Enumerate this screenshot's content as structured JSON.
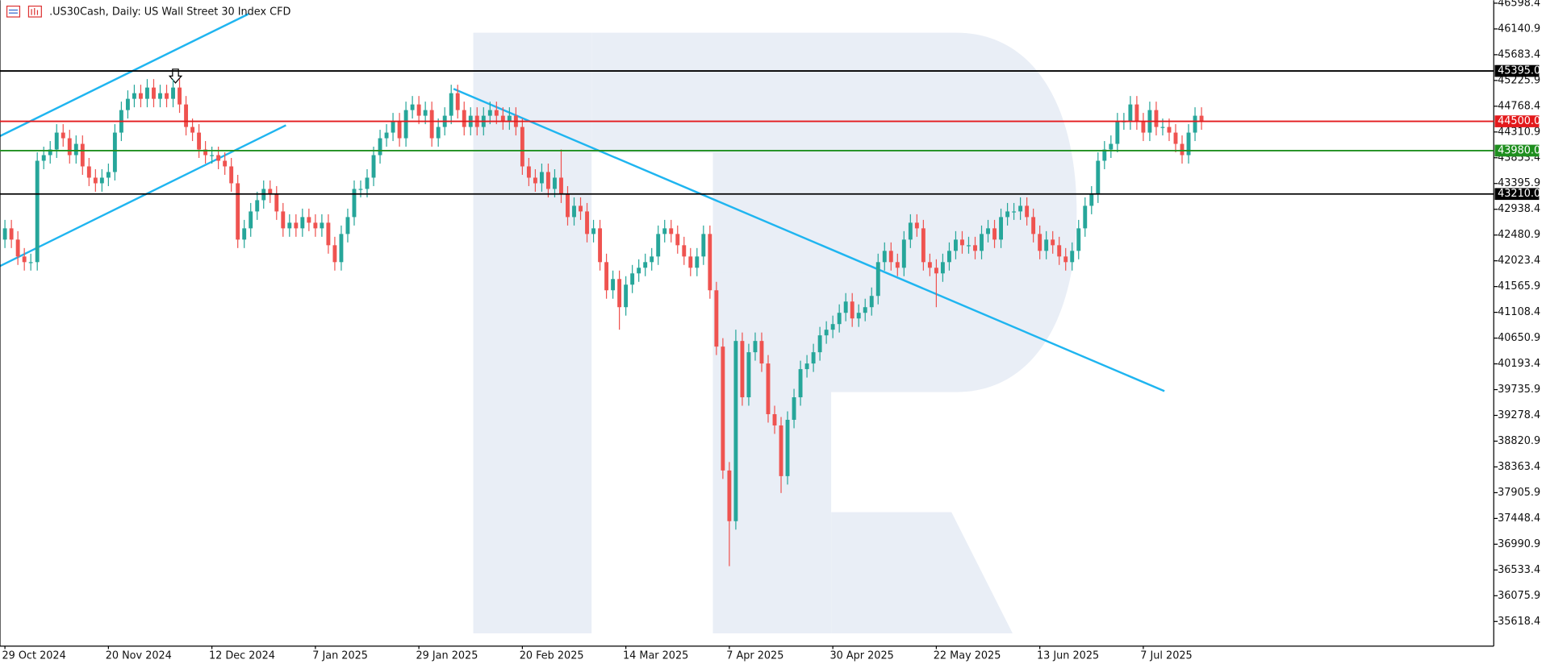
{
  "chart_data": {
    "type": "candlestick",
    "title": ".US30Cash, Daily:  US Wall Street 30 Index CFD",
    "up_color": "#26a69a",
    "down_color": "#ef5350",
    "ylim": [
      35181,
      46651
    ],
    "yticks": [
      46598.4,
      46140.9,
      45683.4,
      45225.9,
      44768.4,
      44310.9,
      43853.4,
      43395.9,
      42938.4,
      42480.9,
      42023.4,
      41565.9,
      41108.4,
      40650.9,
      40193.4,
      39735.9,
      39278.4,
      38820.9,
      38363.4,
      37905.9,
      37448.4,
      36990.9,
      36533.4,
      36075.9,
      35618.4
    ],
    "grid": false,
    "levels": [
      {
        "value": 45395,
        "label": "45395.0",
        "color": "#000000"
      },
      {
        "value": 44500,
        "label": "44500.0",
        "color": "#e31a1c"
      },
      {
        "value": 43980,
        "label": "43980.0",
        "color": "#1f8f1f"
      },
      {
        "value": 43210,
        "label": "43210.0",
        "color": "#000000"
      }
    ],
    "categories": [
      "29 Oct 2024",
      null,
      null,
      null,
      null,
      null,
      null,
      null,
      null,
      null,
      null,
      null,
      null,
      null,
      null,
      null,
      "20 Nov 2024",
      null,
      null,
      null,
      null,
      null,
      null,
      null,
      null,
      null,
      null,
      null,
      null,
      null,
      null,
      null,
      "12 Dec 2024",
      null,
      null,
      null,
      null,
      null,
      null,
      null,
      null,
      null,
      null,
      null,
      null,
      null,
      null,
      null,
      "7 Jan 2025",
      null,
      null,
      null,
      null,
      null,
      null,
      null,
      null,
      null,
      null,
      null,
      null,
      null,
      null,
      null,
      "29 Jan 2025",
      null,
      null,
      null,
      null,
      null,
      null,
      null,
      null,
      null,
      null,
      null,
      null,
      null,
      null,
      null,
      "20 Feb 2025",
      null,
      null,
      null,
      null,
      null,
      null,
      null,
      null,
      null,
      null,
      null,
      null,
      null,
      null,
      null,
      "14 Mar 2025",
      null,
      null,
      null,
      null,
      null,
      null,
      null,
      null,
      null,
      null,
      null,
      null,
      null,
      null,
      null,
      "7 Apr 2025",
      null,
      null,
      null,
      null,
      null,
      null,
      null,
      null,
      null,
      null,
      null,
      null,
      null,
      null,
      null,
      "30 Apr 2025",
      null,
      null,
      null,
      null,
      null,
      null,
      null,
      null,
      null,
      null,
      null,
      null,
      null,
      null,
      null,
      "22 May 2025",
      null,
      null,
      null,
      null,
      null,
      null,
      null,
      null,
      null,
      null,
      null,
      null,
      null,
      null,
      null,
      "13 Jun 2025",
      null,
      null,
      null,
      null,
      null,
      null,
      null,
      null,
      null,
      null,
      null,
      null,
      null,
      null,
      null,
      "7 Jul 2025",
      null,
      null,
      null,
      null,
      null,
      null,
      null,
      null,
      null
    ],
    "open": [
      42400,
      42600,
      42400,
      42100,
      42000,
      42000,
      43800,
      43900,
      44000,
      44300,
      44200,
      43900,
      44100,
      43700,
      43500,
      43400,
      43500,
      43600,
      44300,
      44700,
      44900,
      45000,
      44900,
      45100,
      44900,
      45000,
      44900,
      45100,
      44800,
      44400,
      44300,
      44000,
      43900,
      43900,
      43800,
      43700,
      43400,
      42400,
      42600,
      42900,
      43100,
      43300,
      43200,
      42900,
      42600,
      42700,
      42600,
      42800,
      42700,
      42600,
      42700,
      42300,
      42000,
      42500,
      42800,
      43300,
      43300,
      43500,
      43900,
      44200,
      44300,
      44500,
      44200,
      44700,
      44800,
      44600,
      44700,
      44200,
      44400,
      44600,
      45000,
      44700,
      44400,
      44600,
      44400,
      44600,
      44700,
      44600,
      44500,
      44600,
      44400,
      43700,
      43500,
      43400,
      43600,
      43300,
      43500,
      43200,
      42800,
      43000,
      42900,
      42500,
      42600,
      42000,
      41500,
      41700,
      41200,
      41600,
      41800,
      41900,
      42000,
      42100,
      42500,
      42600,
      42500,
      42300,
      42100,
      41900,
      42100,
      42500,
      41500,
      40500,
      38300,
      37400,
      40600,
      39600,
      40400,
      40600,
      40200,
      39300,
      39100,
      38200,
      39200,
      39600,
      40100,
      40200,
      40400,
      40700,
      40800,
      40900,
      41100,
      41300,
      41000,
      41100,
      41200,
      41400,
      42000,
      42200,
      42000,
      41900,
      42400,
      42700,
      42600,
      42000,
      41900,
      41800,
      42000,
      42200,
      42400,
      42300,
      42300,
      42200,
      42500,
      42600,
      42400,
      42800,
      42900,
      42900,
      43000,
      42800,
      42500,
      42200,
      42400,
      42300,
      42100,
      42000,
      42200,
      42600,
      43000,
      43200,
      43800,
      44000,
      44100,
      44500,
      44500,
      44800,
      44500,
      44300,
      44700,
      44400,
      44400,
      44300,
      44100,
      43900,
      44300,
      44600
    ],
    "high": [
      42750,
      42750,
      42550,
      42250,
      42150,
      43950,
      44050,
      44150,
      44450,
      44450,
      44350,
      44250,
      44250,
      43850,
      43650,
      43650,
      43750,
      44450,
      44850,
      45050,
      45150,
      45150,
      45250,
      45250,
      45150,
      45150,
      45250,
      45250,
      44950,
      44550,
      44450,
      44150,
      44050,
      44050,
      43950,
      43850,
      43550,
      42750,
      43050,
      43250,
      43450,
      43450,
      43350,
      43050,
      42850,
      42850,
      42950,
      42950,
      42850,
      42850,
      42850,
      42450,
      42650,
      42950,
      43450,
      43450,
      43650,
      44050,
      44350,
      44450,
      44650,
      44650,
      44850,
      44950,
      44950,
      44850,
      44850,
      44550,
      44750,
      45150,
      45150,
      44850,
      44750,
      44750,
      44750,
      44850,
      44850,
      44750,
      44750,
      44750,
      44550,
      43850,
      43650,
      43750,
      43750,
      43650,
      44000,
      43350,
      43150,
      43150,
      43050,
      42750,
      42750,
      42150,
      41850,
      41850,
      41750,
      41950,
      42050,
      42150,
      42250,
      42650,
      42750,
      42750,
      42650,
      42450,
      42250,
      42250,
      42650,
      42650,
      41650,
      40650,
      38450,
      40800,
      40750,
      40550,
      40750,
      40750,
      40350,
      39450,
      39250,
      39350,
      39750,
      40250,
      40350,
      40550,
      40850,
      40950,
      41050,
      41250,
      41450,
      41450,
      41250,
      41350,
      41550,
      42150,
      42350,
      42350,
      42150,
      42550,
      42850,
      42850,
      42750,
      42150,
      42050,
      42150,
      42350,
      42550,
      42550,
      42450,
      42450,
      42650,
      42750,
      42750,
      42950,
      43050,
      43050,
      43150,
      43150,
      42950,
      42650,
      42550,
      42550,
      42450,
      42250,
      42350,
      42750,
      43150,
      43350,
      43950,
      44150,
      44250,
      44650,
      44650,
      44950,
      44950,
      44650,
      44850,
      44850,
      44550,
      44550,
      44450,
      44250,
      44450,
      44750,
      44750
    ],
    "low": [
      42250,
      42250,
      41950,
      41850,
      41850,
      41850,
      43650,
      43750,
      43850,
      44050,
      43750,
      43750,
      43550,
      43350,
      43250,
      43250,
      43350,
      43450,
      44150,
      44550,
      44750,
      44750,
      44750,
      44750,
      44750,
      44750,
      44750,
      44650,
      44250,
      44150,
      43850,
      43750,
      43750,
      43650,
      43550,
      43250,
      42250,
      42250,
      42450,
      42750,
      42950,
      43050,
      42750,
      42450,
      42450,
      42450,
      42450,
      42550,
      42450,
      42450,
      42150,
      41850,
      41850,
      42350,
      42650,
      43150,
      43150,
      43350,
      43750,
      44050,
      44150,
      44050,
      44050,
      44550,
      44450,
      44450,
      44050,
      44050,
      44250,
      44450,
      44550,
      44250,
      44250,
      44250,
      44250,
      44450,
      44450,
      44350,
      44350,
      44250,
      43550,
      43350,
      43250,
      43250,
      43150,
      43150,
      43050,
      42650,
      42650,
      42750,
      42350,
      42350,
      41850,
      41350,
      41350,
      40800,
      41050,
      41450,
      41650,
      41750,
      41850,
      41950,
      42350,
      42350,
      42150,
      41950,
      41750,
      41750,
      41950,
      41350,
      40350,
      38150,
      36600,
      37250,
      39450,
      39450,
      40250,
      40050,
      39150,
      38950,
      37900,
      38050,
      39050,
      39450,
      39950,
      40050,
      40250,
      40550,
      40650,
      40750,
      40950,
      40850,
      40850,
      40950,
      41050,
      41250,
      41850,
      41850,
      41750,
      41750,
      42250,
      42450,
      41850,
      41750,
      41200,
      41650,
      41850,
      42050,
      42150,
      42150,
      42050,
      42050,
      42350,
      42250,
      42250,
      42650,
      42750,
      42750,
      42650,
      42350,
      42050,
      42050,
      42150,
      41950,
      41850,
      41850,
      42050,
      42450,
      42850,
      43050,
      43650,
      43850,
      43950,
      44350,
      44350,
      44350,
      44150,
      44150,
      44250,
      44250,
      44150,
      43950,
      43750,
      43750,
      44150,
      44350
    ],
    "close": [
      42600,
      42400,
      42100,
      42000,
      42000,
      43800,
      43900,
      44000,
      44300,
      44200,
      43900,
      44100,
      43700,
      43500,
      43400,
      43500,
      43600,
      44300,
      44700,
      44900,
      45000,
      44900,
      45100,
      44900,
      45000,
      44900,
      45100,
      44800,
      44400,
      44300,
      44000,
      43900,
      43900,
      43800,
      43700,
      43400,
      42400,
      42600,
      42900,
      43100,
      43300,
      43200,
      42900,
      42600,
      42700,
      42600,
      42800,
      42700,
      42600,
      42700,
      42300,
      42000,
      42500,
      42800,
      43300,
      43300,
      43500,
      43900,
      44200,
      44300,
      44500,
      44200,
      44700,
      44800,
      44600,
      44700,
      44200,
      44400,
      44600,
      45000,
      44700,
      44400,
      44600,
      44400,
      44600,
      44700,
      44600,
      44500,
      44600,
      44400,
      43700,
      43500,
      43400,
      43600,
      43300,
      43500,
      43200,
      42800,
      43000,
      42900,
      42500,
      42600,
      42000,
      41500,
      41700,
      41200,
      41600,
      41800,
      41900,
      42000,
      42100,
      42500,
      42600,
      42500,
      42300,
      42100,
      41900,
      42100,
      42500,
      41500,
      40500,
      38300,
      37400,
      40600,
      39600,
      40400,
      40600,
      40200,
      39300,
      39100,
      38200,
      39200,
      39600,
      40100,
      40200,
      40400,
      40700,
      40800,
      40900,
      41100,
      41300,
      41000,
      41100,
      41200,
      41400,
      42000,
      42200,
      42000,
      41900,
      42400,
      42700,
      42600,
      42000,
      41900,
      41800,
      42000,
      42200,
      42400,
      42300,
      42300,
      42200,
      42500,
      42600,
      42400,
      42800,
      42900,
      42900,
      43000,
      42800,
      42500,
      42200,
      42400,
      42300,
      42100,
      42000,
      42200,
      42600,
      43000,
      43200,
      43800,
      44000,
      44100,
      44500,
      44500,
      44800,
      44500,
      44300,
      44700,
      44400,
      44400,
      44300,
      44100,
      43900,
      44300,
      44600,
      44500
    ]
  }
}
